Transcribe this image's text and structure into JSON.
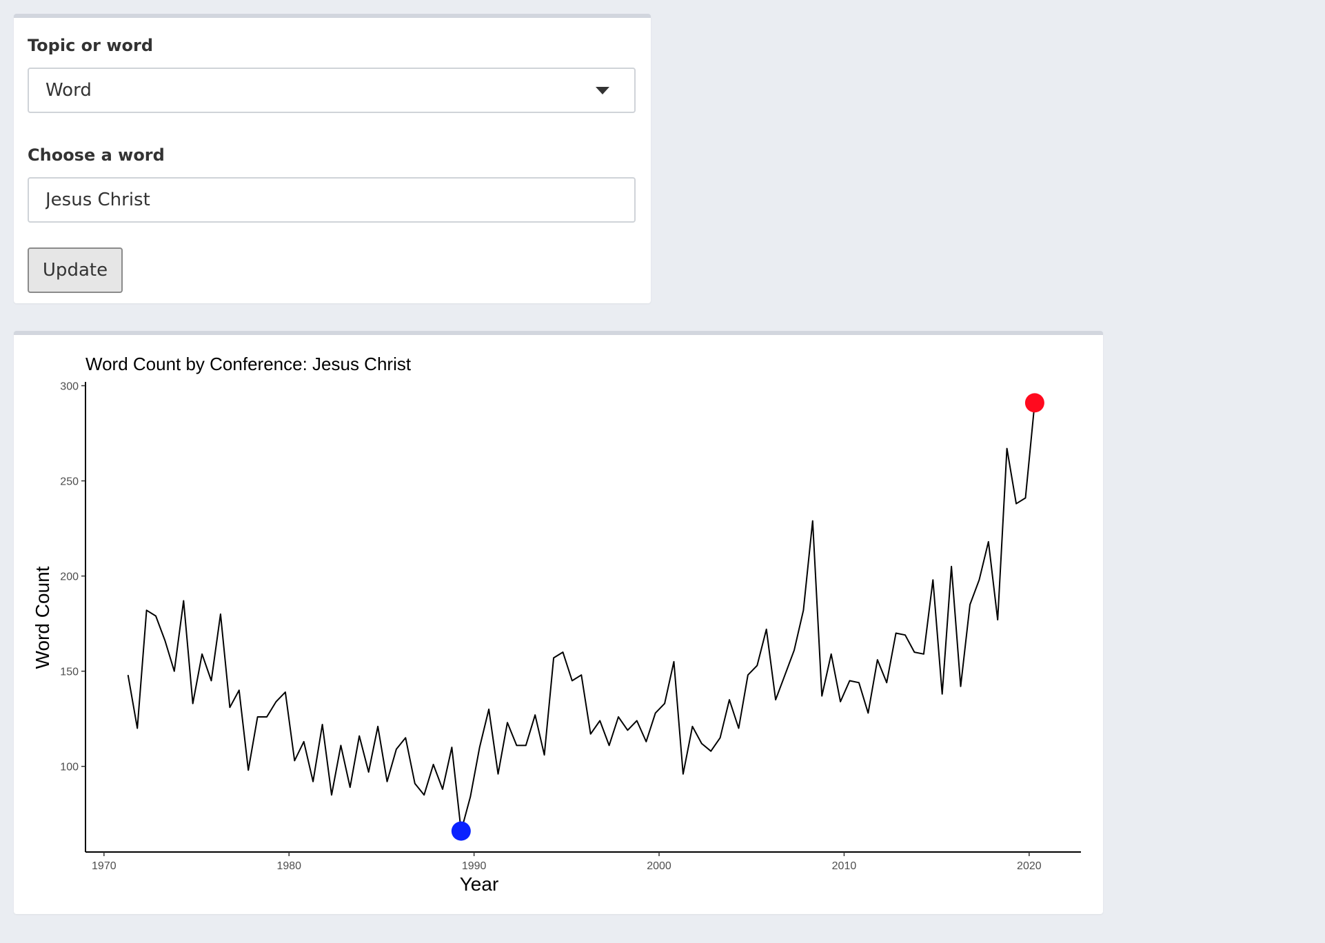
{
  "controls": {
    "topic_label": "Topic or word",
    "topic_value": "Word",
    "word_label": "Choose a word",
    "word_value": "Jesus Christ",
    "update_label": "Update"
  },
  "chart_data": {
    "type": "line",
    "title": "Word Count by Conference: Jesus Christ",
    "xlabel": "Year",
    "ylabel": "Word Count",
    "xlim": [
      1969,
      2022.8
    ],
    "ylim": [
      55,
      302
    ],
    "xticks": [
      1970,
      1980,
      1990,
      2000,
      2010,
      2020
    ],
    "yticks": [
      100,
      150,
      200,
      250,
      300
    ],
    "grid": false,
    "line_color": "#000000",
    "series": [
      {
        "x": [
          1971.3,
          1971.8,
          1972.3,
          1972.8,
          1973.3,
          1973.8,
          1974.3,
          1974.8,
          1975.3,
          1975.8,
          1976.3,
          1976.8,
          1977.3,
          1977.8,
          1978.3,
          1978.8,
          1979.3,
          1979.8,
          1980.3,
          1980.8,
          1981.3,
          1981.8,
          1982.3,
          1982.8,
          1983.3,
          1983.8,
          1984.3,
          1984.8,
          1985.3,
          1985.8,
          1986.3,
          1986.8,
          1987.3,
          1987.8,
          1988.3,
          1988.8,
          1989.3,
          1989.8,
          1990.3,
          1990.8,
          1991.3,
          1991.8,
          1992.3,
          1992.8,
          1993.3,
          1993.8,
          1994.3,
          1994.8,
          1995.3,
          1995.8,
          1996.3,
          1996.8,
          1997.3,
          1997.8,
          1998.3,
          1998.8,
          1999.3,
          1999.8,
          2000.3,
          2000.8,
          2001.3,
          2001.8,
          2002.3,
          2002.8,
          2003.3,
          2003.8,
          2004.3,
          2004.8,
          2005.3,
          2005.8,
          2006.3,
          2006.8,
          2007.3,
          2007.8,
          2008.3,
          2008.8,
          2009.3,
          2009.8,
          2010.3,
          2010.8,
          2011.3,
          2011.8,
          2012.3,
          2012.8,
          2013.3,
          2013.8,
          2014.3,
          2014.8,
          2015.3,
          2015.8,
          2016.3,
          2016.8,
          2017.3,
          2017.8,
          2018.3,
          2018.8,
          2019.3,
          2019.8,
          2020.3
        ],
        "y": [
          148,
          120,
          182,
          179,
          166,
          150,
          187,
          133,
          159,
          145,
          180,
          131,
          140,
          98,
          126,
          126,
          134,
          139,
          103,
          113,
          92,
          122,
          85,
          111,
          89,
          116,
          97,
          121,
          92,
          109,
          115,
          91,
          85,
          101,
          88,
          110,
          66,
          84,
          110,
          130,
          96,
          123,
          111,
          111,
          127,
          106,
          157,
          160,
          145,
          148,
          117,
          124,
          111,
          126,
          119,
          124,
          113,
          128,
          133,
          155,
          96,
          121,
          112,
          108,
          115,
          135,
          120,
          148,
          153,
          172,
          135,
          148,
          161,
          182,
          229,
          137,
          159,
          134,
          145,
          144,
          128,
          156,
          144,
          170,
          169,
          160,
          159,
          198,
          138,
          205,
          142,
          185,
          198,
          218,
          177,
          267,
          238,
          241,
          291
        ]
      }
    ],
    "highlights": [
      {
        "label": "min",
        "x": 1989.3,
        "y": 66,
        "color": "#0a22ff"
      },
      {
        "label": "max",
        "x": 2020.3,
        "y": 291,
        "color": "#ff0a1e"
      }
    ]
  }
}
